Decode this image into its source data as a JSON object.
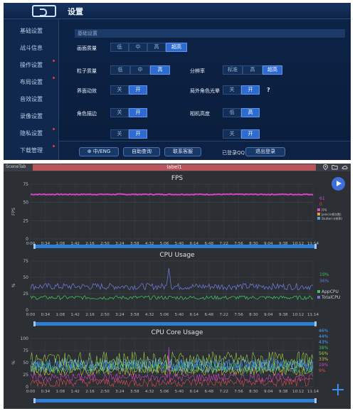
{
  "game": {
    "title": "设置",
    "sidebar": [
      {
        "label": "基础设置",
        "active": true
      },
      {
        "label": "战斗信息",
        "active": false
      },
      {
        "label": "操作设置",
        "active": false
      },
      {
        "label": "布局设置",
        "active": false
      },
      {
        "label": "音效设置",
        "active": false
      },
      {
        "label": "录像设置",
        "active": false
      },
      {
        "label": "隐私设置",
        "active": false
      },
      {
        "label": "下载管理",
        "active": false
      }
    ],
    "section_title": "基础设置",
    "settings": {
      "quality": {
        "label": "画面质量",
        "options": [
          "低",
          "中",
          "高",
          "超高"
        ],
        "selected": 3
      },
      "particle": {
        "label": "粒子质量",
        "options": [
          "低",
          "中",
          "高"
        ],
        "selected": 2
      },
      "resolution": {
        "label": "分辨率",
        "options": [
          "标准",
          "高",
          "超高"
        ],
        "selected": 2
      },
      "ui_anim": {
        "label": "界面动效",
        "options": [
          "关",
          "开"
        ],
        "selected": 1
      },
      "halo": {
        "label": "局外角色光晕",
        "options": [
          "关",
          "开"
        ],
        "selected": 1
      },
      "stroke": {
        "label": "角色描边",
        "options": [
          "关",
          "开"
        ],
        "selected": 1
      },
      "camera": {
        "label": "相机高度",
        "options": [
          "低",
          "高"
        ],
        "selected": 1
      }
    },
    "buttons": {
      "lang": "中/ENG",
      "self_check": "自助查询",
      "service": "联系客服",
      "logout": "退出登录"
    },
    "status": "已登录QQ",
    "help_mark": "?"
  },
  "perf": {
    "tab_name": "SceneTab",
    "label": "label1",
    "icons": [
      "location-icon",
      "folder-icon",
      "cloud-icon"
    ],
    "colors": {
      "fps": "#d545c4",
      "app_cpu": "#3fbf5a",
      "total_cpu": "#6e76d8",
      "core": [
        "#4aa3f0",
        "#4aa3f0",
        "#4aa3f0",
        "#3fbf5a",
        "#6e76d8",
        "#a0d040",
        "#d545c4",
        "#e05050"
      ]
    },
    "time_ticks": [
      "0:00",
      "0:34",
      "1:08",
      "1:42",
      "2:16",
      "2:50",
      "3:24",
      "3:58",
      "4:32",
      "5:06",
      "5:40",
      "6:14",
      "6:48",
      "7:22",
      "7:56",
      "8:30",
      "9:04",
      "9:38",
      "10:12",
      "11:14"
    ],
    "fps_chart": {
      "title": "FPS",
      "ylabel": "FPS",
      "y_ticks": [
        "0",
        "25",
        "50",
        "75"
      ],
      "ylim": [
        0,
        75
      ],
      "value": 61,
      "current": [
        "61",
        "0"
      ],
      "legend": [
        "FPS",
        "Jank(卡顿次数)",
        "Stutter(卡顿率)"
      ]
    },
    "cpu_chart": {
      "title": "CPU Usage",
      "ylabel": "%",
      "y_ticks": [
        "0",
        "25",
        "50",
        "75"
      ],
      "ylim": [
        0,
        75
      ],
      "current": [
        "19%",
        "36%"
      ],
      "legend": [
        "AppCPU",
        "TotalCPU"
      ],
      "app_level": 19,
      "total_level": 36,
      "spike": 64
    },
    "core_chart": {
      "title": "CPU Core Usage",
      "ylabel": "%",
      "y_ticks": [
        "0",
        "25",
        "50",
        "75",
        "100"
      ],
      "ylim": [
        0,
        100
      ],
      "current": [
        "46%",
        "44%",
        "43%",
        "38%",
        "56%",
        "33%",
        "19%",
        "9%"
      ],
      "levels": [
        46,
        44,
        43,
        38,
        56,
        33,
        19,
        9
      ]
    }
  }
}
